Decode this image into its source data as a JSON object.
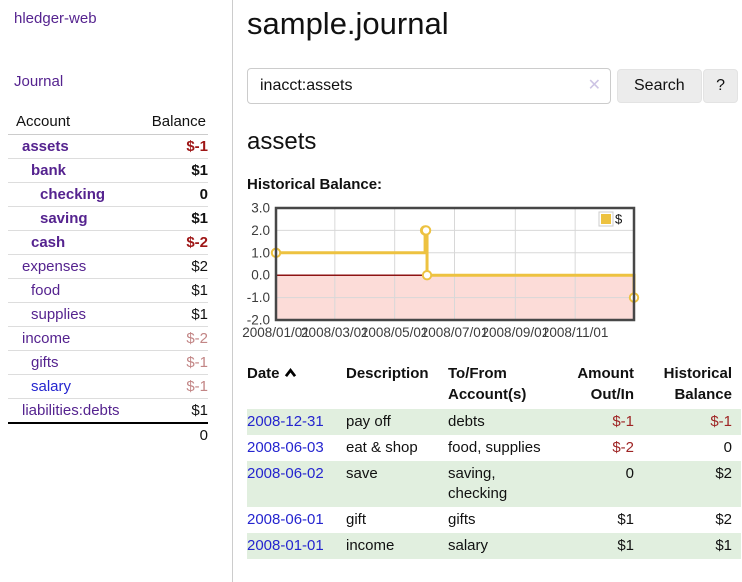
{
  "app": {
    "title": "hledger-web"
  },
  "sidebar": {
    "nav_journal": "Journal",
    "accounts_table": {
      "col_account": "Account",
      "col_balance": "Balance",
      "rows": [
        {
          "name": "assets",
          "balance": "$-1",
          "indent": 0,
          "in_acct": true,
          "value_class": "neg-strong",
          "link": "purple"
        },
        {
          "name": "bank",
          "balance": "$1",
          "indent": 1,
          "in_acct": true,
          "value_class": "pos",
          "link": "purple"
        },
        {
          "name": "checking",
          "balance": "0",
          "indent": 2,
          "in_acct": true,
          "value_class": "pos",
          "link": "purple"
        },
        {
          "name": "saving",
          "balance": "$1",
          "indent": 2,
          "in_acct": true,
          "value_class": "pos",
          "link": "purple"
        },
        {
          "name": "cash",
          "balance": "$-2",
          "indent": 1,
          "in_acct": true,
          "value_class": "neg-strong",
          "link": "purple"
        },
        {
          "name": "expenses",
          "balance": "$2",
          "indent": 0,
          "in_acct": false,
          "value_class": "pos",
          "link": "purple"
        },
        {
          "name": "food",
          "balance": "$1",
          "indent": 1,
          "in_acct": false,
          "value_class": "pos",
          "link": "purple"
        },
        {
          "name": "supplies",
          "balance": "$1",
          "indent": 1,
          "in_acct": false,
          "value_class": "pos",
          "link": "purple"
        },
        {
          "name": "income",
          "balance": "$-2",
          "indent": 0,
          "in_acct": false,
          "value_class": "neg-soft",
          "link": "purple"
        },
        {
          "name": "gifts",
          "balance": "$-1",
          "indent": 1,
          "in_acct": false,
          "value_class": "neg-soft",
          "link": "purple"
        },
        {
          "name": "salary",
          "balance": "$-1",
          "indent": 1,
          "in_acct": false,
          "value_class": "neg-soft",
          "link": "blue"
        },
        {
          "name": "liabilities:debts",
          "balance": "$1",
          "indent": 0,
          "in_acct": false,
          "value_class": "pos",
          "link": "purple"
        }
      ],
      "total": "0"
    }
  },
  "main": {
    "title": "sample.journal",
    "search": {
      "value": "inacct:assets",
      "clear_icon": "✕",
      "search_button": "Search",
      "help_button": "?"
    },
    "account_heading": "assets",
    "chart_title": "Historical Balance:"
  },
  "chart_data": {
    "type": "line",
    "title": "Historical Balance:",
    "xlabel": "",
    "ylabel": "",
    "xlim": [
      "2008-01-01",
      "2008-12-31"
    ],
    "ylim": [
      -2.0,
      3.0
    ],
    "yticks": [
      3.0,
      2.0,
      1.0,
      0.0,
      -1.0,
      -2.0
    ],
    "xticks": [
      "2008/01/01",
      "2008/03/01",
      "2008/05/01",
      "2008/07/01",
      "2008/09/01",
      "2008/11/01"
    ],
    "grid": true,
    "legend_position": "top-right",
    "series": [
      {
        "name": "$",
        "color": "#edc240",
        "step": true,
        "points": [
          {
            "x": "2008-01-01",
            "y": 1
          },
          {
            "x": "2008-06-01",
            "y": 2
          },
          {
            "x": "2008-06-02",
            "y": 2
          },
          {
            "x": "2008-06-03",
            "y": 0
          },
          {
            "x": "2008-12-31",
            "y": -1
          }
        ]
      }
    ],
    "negative_region_color": "#fcdcd8",
    "zero_line_color": "#8e1313",
    "grid_color": "#d8d8d8",
    "border_color": "#474747"
  },
  "register": {
    "headers": {
      "date": "Date",
      "description": "Description",
      "accounts": "To/From Account(s)",
      "amount": "Amount Out/In",
      "balance": "Historical Balance"
    },
    "rows": [
      {
        "date": "2008-12-31",
        "description": "pay off",
        "accounts": "debts",
        "amount": "$-1",
        "amount_class": "neg",
        "balance": "$-1",
        "balance_class": "neg"
      },
      {
        "date": "2008-06-03",
        "description": "eat & shop",
        "accounts": "food, supplies",
        "amount": "$-2",
        "amount_class": "neg",
        "balance": "0",
        "balance_class": "pos"
      },
      {
        "date": "2008-06-02",
        "description": "save",
        "accounts": "saving, checking",
        "amount": "0",
        "amount_class": "pos",
        "balance": "$2",
        "balance_class": "pos"
      },
      {
        "date": "2008-06-01",
        "description": "gift",
        "accounts": "gifts",
        "amount": "$1",
        "amount_class": "pos",
        "balance": "$2",
        "balance_class": "pos"
      },
      {
        "date": "2008-01-01",
        "description": "income",
        "accounts": "salary",
        "amount": "$1",
        "amount_class": "pos",
        "balance": "$1",
        "balance_class": "pos"
      }
    ]
  }
}
